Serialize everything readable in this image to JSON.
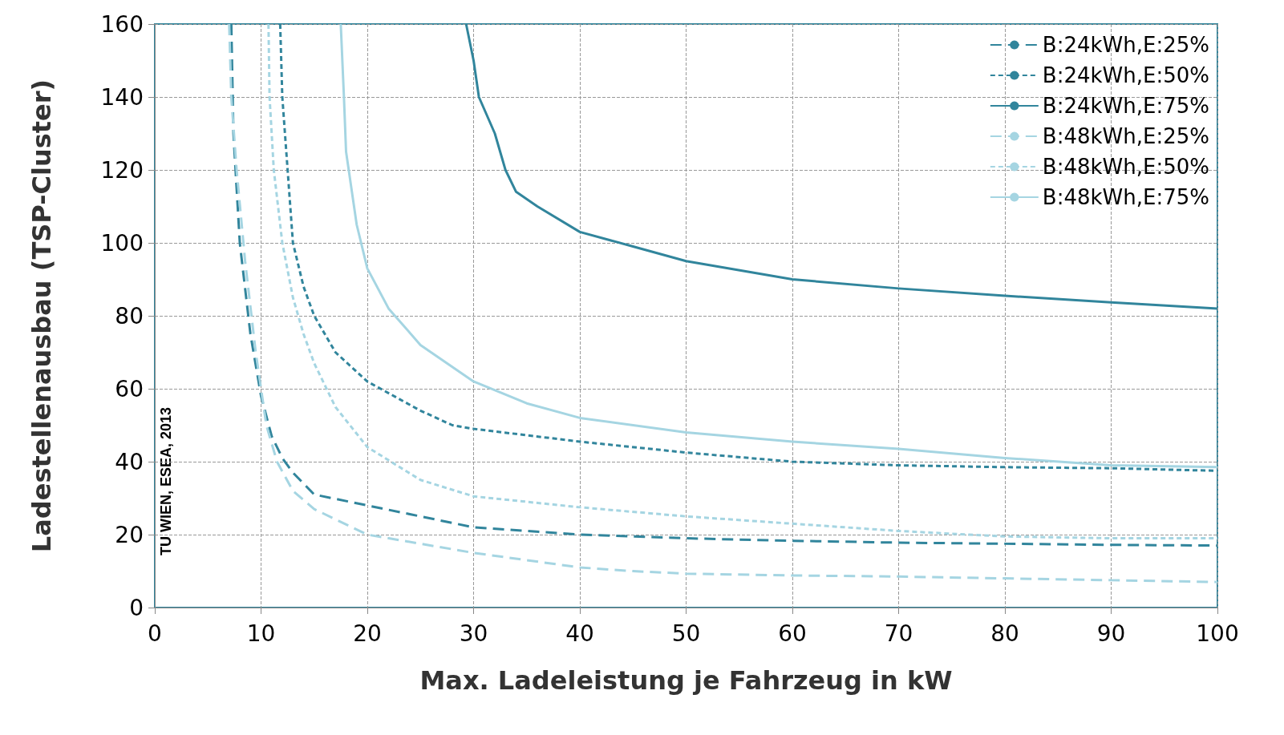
{
  "chart_data": {
    "type": "line",
    "xlabel": "Max. Ladeleistung je Fahrzeug in kW",
    "ylabel": "Ladestellenausbau (TSP-Cluster)",
    "xlim": [
      0,
      100
    ],
    "xticks": [
      0,
      10,
      20,
      30,
      40,
      50,
      60,
      70,
      80,
      90,
      100
    ],
    "ylim": [
      0,
      160
    ],
    "yticks": [
      0,
      20,
      40,
      60,
      80,
      100,
      120,
      140,
      160
    ],
    "grid": true,
    "legend": "top right",
    "marker": "none",
    "annotations": [
      "TU WIEN, ESEA, 2013"
    ],
    "series": [
      {
        "name": "B:24kWh,E:25%",
        "color": "#31859c",
        "line_style": "dashed",
        "x": [
          7.2,
          7.4,
          8,
          9,
          10,
          11,
          12,
          13,
          15,
          20,
          25,
          30,
          40,
          50,
          60,
          70,
          80,
          90,
          100
        ],
        "values": [
          160,
          130,
          100,
          75,
          58,
          47,
          41,
          37,
          31,
          28,
          25,
          22,
          20,
          19,
          18.3,
          17.8,
          17.5,
          17.2,
          17
        ]
      },
      {
        "name": "B:24kWh,E:50%",
        "color": "#31859c",
        "line_style": "dotted",
        "x": [
          11.8,
          12,
          12.5,
          13,
          14,
          15,
          17,
          20,
          25,
          28,
          30,
          40,
          50,
          60,
          70,
          80,
          90,
          100
        ],
        "values": [
          160,
          140,
          120,
          100,
          88,
          80,
          70,
          62,
          54,
          50,
          49,
          45.5,
          42.5,
          40,
          39,
          38.5,
          38.2,
          37.5
        ]
      },
      {
        "name": "B:24kWh,E:75%",
        "color": "#31859c",
        "line_style": "solid",
        "x": [
          29.3,
          30,
          30.5,
          32,
          33,
          34,
          36,
          40,
          45,
          50,
          60,
          70,
          80,
          90,
          100
        ],
        "values": [
          160,
          150,
          140,
          130,
          120,
          114,
          110,
          103,
          99,
          95,
          90,
          87.5,
          85.5,
          83.7,
          82
        ]
      },
      {
        "name": "B:48kWh,E:25%",
        "color": "#a5d5e2",
        "line_style": "dashed",
        "x": [
          7,
          7.2,
          7.7,
          8.5,
          9.5,
          10.5,
          11.5,
          13,
          15,
          20,
          25,
          30,
          40,
          45,
          50,
          60,
          70,
          80,
          90,
          100
        ],
        "values": [
          160,
          140,
          120,
          95,
          70,
          50,
          40,
          32,
          27,
          20,
          17.5,
          15,
          11,
          10,
          9.3,
          8.8,
          8.5,
          8,
          7.5,
          7
        ]
      },
      {
        "name": "B:48kWh,E:50%",
        "color": "#a5d5e2",
        "line_style": "dotted",
        "x": [
          10.7,
          10.8,
          11.2,
          12,
          13,
          14,
          15,
          17,
          20,
          25,
          30,
          40,
          50,
          60,
          70,
          80,
          90,
          100
        ],
        "values": [
          160,
          140,
          120,
          100,
          85,
          75,
          67,
          55,
          44,
          35,
          30.5,
          27.5,
          25,
          23,
          21,
          19.5,
          19,
          19
        ]
      },
      {
        "name": "B:48kWh,E:75%",
        "color": "#a5d5e2",
        "line_style": "solid",
        "x": [
          17.5,
          17.8,
          18,
          19,
          20,
          22,
          25,
          30,
          35,
          40,
          50,
          60,
          70,
          80,
          90,
          100
        ],
        "values": [
          160,
          140,
          125,
          105,
          93,
          82,
          72,
          62,
          56,
          52,
          48,
          45.5,
          43.5,
          41,
          39,
          38.5
        ]
      }
    ]
  }
}
